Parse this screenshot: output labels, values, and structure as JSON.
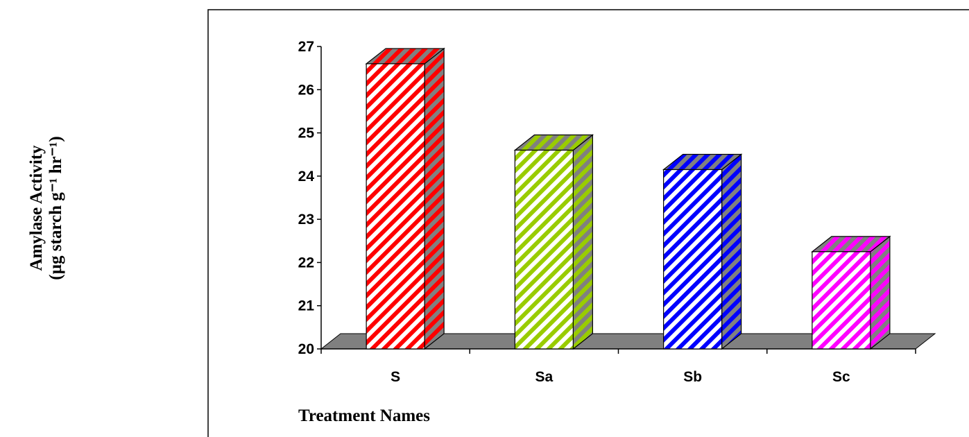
{
  "chart_data": {
    "type": "bar3d",
    "y_label": [
      "Amylase Activity",
      "(µg starch g⁻¹ hr⁻¹)"
    ],
    "x_label": "Treatment Names",
    "categories": [
      "S",
      "Sa",
      "Sb",
      "Sc"
    ],
    "values": [
      26.6,
      24.6,
      24.15,
      22.25
    ],
    "colors": [
      "#ff0000",
      "#99cc00",
      "#0000ff",
      "#ff00ff"
    ],
    "ylim": [
      20,
      27
    ],
    "yticks": [
      20,
      21,
      22,
      23,
      24,
      25,
      26,
      27
    ]
  }
}
